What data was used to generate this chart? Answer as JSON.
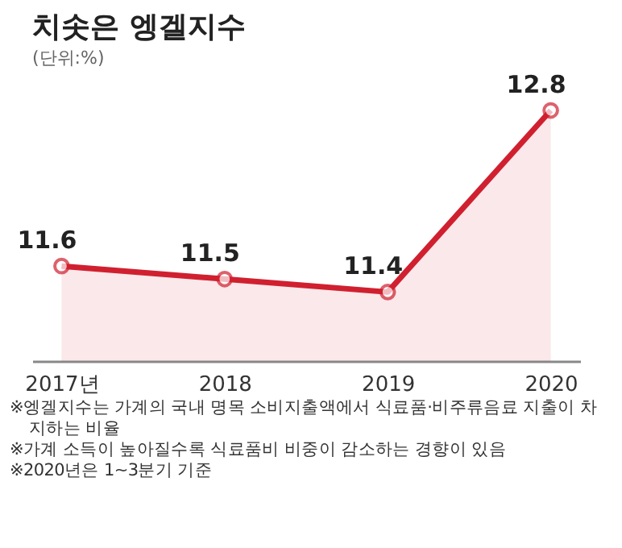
{
  "chart_data": {
    "type": "area",
    "title": "치솟은 엥겔지수",
    "subtitle": "(단위:%)",
    "categories": [
      "2017년",
      "2018",
      "2019",
      "2020"
    ],
    "series": [
      {
        "color": "#d0202f",
        "values": [
          11.6,
          11.5,
          11.4,
          12.8
        ]
      }
    ],
    "marker": "circle",
    "data_labels": true,
    "grid": false,
    "legend": false,
    "annotations": [
      "※엥겔지수는 가계의 국내 명목 소비지출액에서 식료품·비주류음료 지출이 차지하는 비율",
      "※가계 소득이 높아질수록 식료품비 비중이 감소하는 경향이 있음",
      "※2020년은 1~3분기 기준"
    ]
  }
}
